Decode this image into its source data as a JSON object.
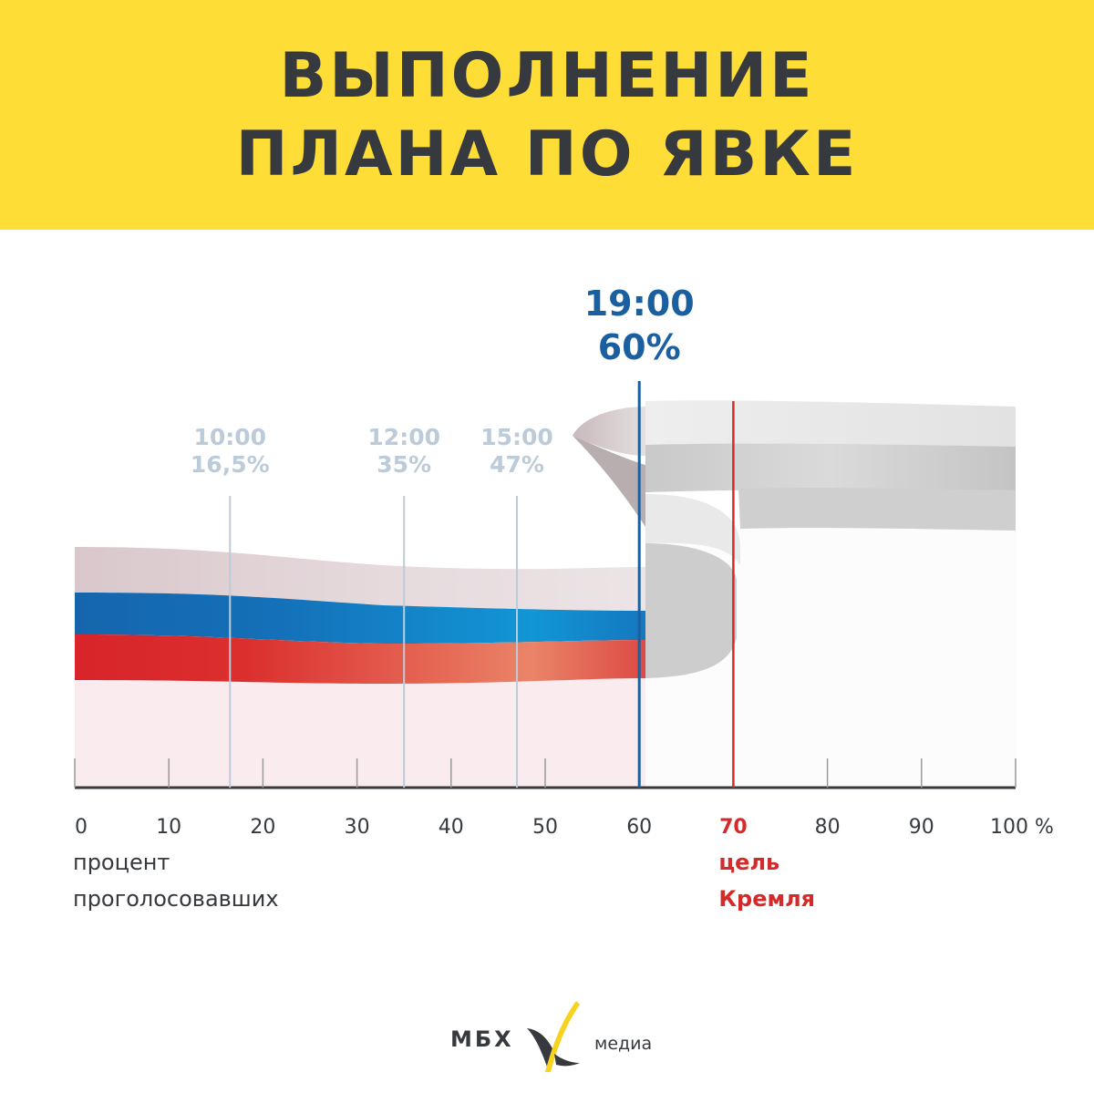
{
  "header": {
    "title_line1": "ВЫПОЛНЕНИЕ",
    "title_line2": "ПЛАНА ПО ЯВКЕ",
    "background_color": "#fedd37",
    "text_color": "#36393e"
  },
  "chart_data": {
    "type": "line",
    "title": "ВЫПОЛНЕНИЕ ПЛАНА ПО ЯВКЕ",
    "xlim": [
      0,
      100
    ],
    "x_unit": "%",
    "xticks": [
      {
        "value": 0,
        "label": "0"
      },
      {
        "value": 10,
        "label": "10"
      },
      {
        "value": 20,
        "label": "20"
      },
      {
        "value": 30,
        "label": "30"
      },
      {
        "value": 40,
        "label": "40"
      },
      {
        "value": 50,
        "label": "50"
      },
      {
        "value": 60,
        "label": "60"
      },
      {
        "value": 70,
        "label": "70"
      },
      {
        "value": 80,
        "label": "80"
      },
      {
        "value": 90,
        "label": "90"
      },
      {
        "value": 100,
        "label": "100 %"
      }
    ],
    "xlabel_line1": "процент",
    "xlabel_line2": "проголосовавших",
    "checkpoints": [
      {
        "time": "10:00",
        "turnout": 16.5,
        "label": "16,5%",
        "current": false
      },
      {
        "time": "12:00",
        "turnout": 35,
        "label": "35%",
        "current": false
      },
      {
        "time": "15:00",
        "turnout": 47,
        "label": "47%",
        "current": false
      },
      {
        "time": "19:00",
        "turnout": 60,
        "label": "60%",
        "current": true
      }
    ],
    "target": {
      "value": 70,
      "label": "70",
      "text_line1": "цель",
      "text_line2": "Кремля"
    },
    "colors": {
      "current": "#1a5fa0",
      "past": "#bccbd9",
      "target": "#d42a2a",
      "axis": "#36393e",
      "band_white": "#dfd0d3",
      "band_blue": "#1568b0",
      "band_red": "#d92a2a"
    }
  },
  "footer": {
    "logo_left": "МБХ",
    "logo_right": "медиа",
    "logo_mark": "X-icon"
  }
}
